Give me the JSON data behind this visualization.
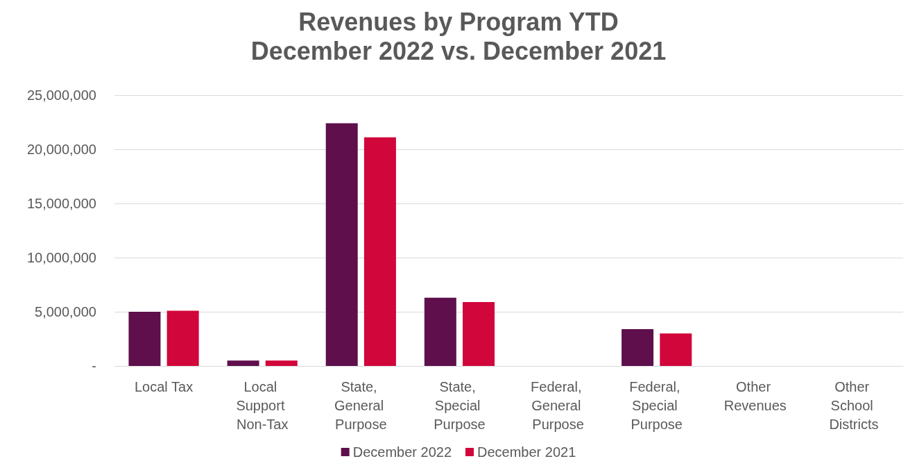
{
  "chart_data": {
    "type": "bar",
    "title": "Revenues by Program YTD",
    "subtitle": "December 2022 vs. December 2021",
    "categories": [
      "Local Tax",
      "Local Support Non-Tax",
      "State, General Purpose",
      "State, Special Purpose",
      "Federal, General Purpose",
      "Federal, Special Purpose",
      "Other Revenues",
      "Other School Districts"
    ],
    "series": [
      {
        "name": "December 2022",
        "color": "#5e0f4c",
        "values": [
          5000000,
          500000,
          22400000,
          6300000,
          0,
          3400000,
          0,
          0
        ]
      },
      {
        "name": "December 2021",
        "color": "#d1063b",
        "values": [
          5100000,
          500000,
          21100000,
          5900000,
          0,
          3000000,
          0,
          0
        ]
      }
    ],
    "ylim": [
      0,
      25000000
    ],
    "yticks": [
      {
        "value": 0,
        "label": "-"
      },
      {
        "value": 5000000,
        "label": "5,000,000"
      },
      {
        "value": 10000000,
        "label": "10,000,000"
      },
      {
        "value": 15000000,
        "label": "15,000,000"
      },
      {
        "value": 20000000,
        "label": "20,000,000"
      },
      {
        "value": 25000000,
        "label": "25,000,000"
      }
    ],
    "grid": "y",
    "legend": "bottom"
  }
}
